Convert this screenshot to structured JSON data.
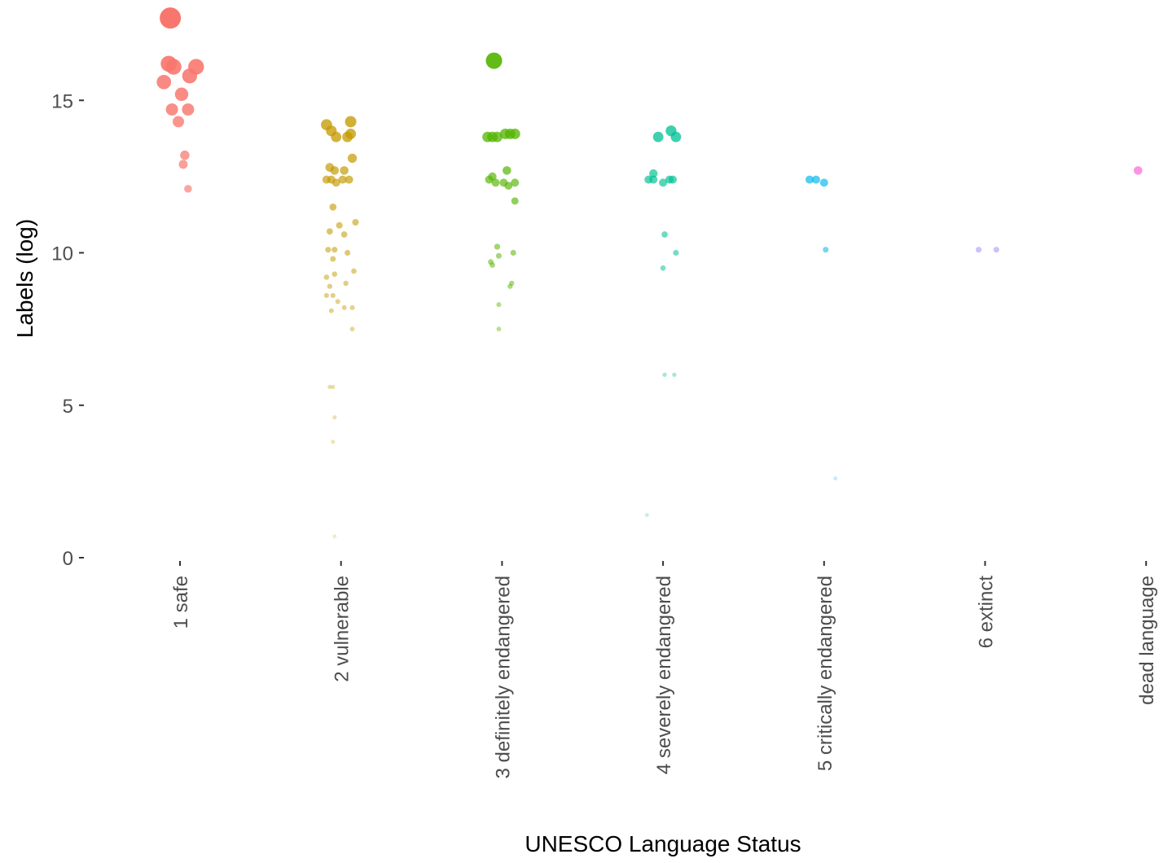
{
  "chart_data": {
    "type": "scatter",
    "title": "",
    "xlabel": "UNESCO Language Status",
    "ylabel": "Labels (log)",
    "ylim": [
      0,
      17.7
    ],
    "yticks": [
      "0",
      "5",
      "10",
      "15"
    ],
    "grid": false,
    "legend": "none",
    "categories": [
      "1 safe",
      "2 vulnerable",
      "3 definitely endangered",
      "4 severely endangered",
      "5 critically endangered",
      "6 extinct",
      "dead language"
    ],
    "colors": [
      "#F8766D",
      "#C49A00",
      "#53B400",
      "#00C094",
      "#00B6EB",
      "#A58AFF",
      "#FB61D7"
    ],
    "note_size_encodes": "y",
    "series": [
      {
        "category": "1 safe",
        "points": [
          {
            "dx": -0.06,
            "y": 17.7
          },
          {
            "dx": -0.07,
            "y": 16.2
          },
          {
            "dx": -0.04,
            "y": 16.1
          },
          {
            "dx": 0.1,
            "y": 16.1
          },
          {
            "dx": 0.06,
            "y": 15.8
          },
          {
            "dx": -0.1,
            "y": 15.6
          },
          {
            "dx": 0.01,
            "y": 15.2
          },
          {
            "dx": -0.05,
            "y": 14.7
          },
          {
            "dx": 0.05,
            "y": 14.7
          },
          {
            "dx": -0.01,
            "y": 14.3
          },
          {
            "dx": 0.03,
            "y": 13.2
          },
          {
            "dx": 0.02,
            "y": 12.9
          },
          {
            "dx": 0.05,
            "y": 12.1
          }
        ]
      },
      {
        "category": "2 vulnerable",
        "points": [
          {
            "dx": -0.09,
            "y": 14.2
          },
          {
            "dx": 0.06,
            "y": 14.3
          },
          {
            "dx": -0.06,
            "y": 14.0
          },
          {
            "dx": -0.03,
            "y": 13.8
          },
          {
            "dx": 0.04,
            "y": 13.8
          },
          {
            "dx": 0.06,
            "y": 13.9
          },
          {
            "dx": 0.07,
            "y": 13.1
          },
          {
            "dx": -0.07,
            "y": 12.8
          },
          {
            "dx": -0.04,
            "y": 12.7
          },
          {
            "dx": 0.02,
            "y": 12.7
          },
          {
            "dx": -0.09,
            "y": 12.4
          },
          {
            "dx": -0.06,
            "y": 12.4
          },
          {
            "dx": -0.03,
            "y": 12.3
          },
          {
            "dx": 0.01,
            "y": 12.4
          },
          {
            "dx": 0.05,
            "y": 12.4
          },
          {
            "dx": -0.05,
            "y": 11.5
          },
          {
            "dx": 0.09,
            "y": 11.0
          },
          {
            "dx": -0.01,
            "y": 10.9
          },
          {
            "dx": -0.07,
            "y": 10.7
          },
          {
            "dx": 0.02,
            "y": 10.6
          },
          {
            "dx": -0.08,
            "y": 10.1
          },
          {
            "dx": -0.04,
            "y": 10.1
          },
          {
            "dx": 0.04,
            "y": 10.0
          },
          {
            "dx": -0.05,
            "y": 9.8
          },
          {
            "dx": 0.08,
            "y": 9.4
          },
          {
            "dx": -0.09,
            "y": 9.2
          },
          {
            "dx": -0.04,
            "y": 9.3
          },
          {
            "dx": -0.07,
            "y": 8.9
          },
          {
            "dx": 0.03,
            "y": 9.0
          },
          {
            "dx": -0.09,
            "y": 8.6
          },
          {
            "dx": -0.05,
            "y": 8.6
          },
          {
            "dx": -0.02,
            "y": 8.4
          },
          {
            "dx": 0.07,
            "y": 8.2
          },
          {
            "dx": 0.02,
            "y": 8.2
          },
          {
            "dx": -0.06,
            "y": 8.1
          },
          {
            "dx": 0.07,
            "y": 7.5
          },
          {
            "dx": -0.07,
            "y": 5.6
          },
          {
            "dx": -0.05,
            "y": 5.6
          },
          {
            "dx": -0.04,
            "y": 4.6
          },
          {
            "dx": -0.05,
            "y": 3.8
          },
          {
            "dx": -0.04,
            "y": 0.7
          }
        ]
      },
      {
        "category": "3 definitely endangered",
        "points": [
          {
            "dx": -0.05,
            "y": 16.3
          },
          {
            "dx": -0.09,
            "y": 13.8
          },
          {
            "dx": -0.06,
            "y": 13.8
          },
          {
            "dx": -0.03,
            "y": 13.8
          },
          {
            "dx": 0.02,
            "y": 13.9
          },
          {
            "dx": 0.05,
            "y": 13.9
          },
          {
            "dx": 0.08,
            "y": 13.9
          },
          {
            "dx": 0.03,
            "y": 12.7
          },
          {
            "dx": -0.06,
            "y": 12.5
          },
          {
            "dx": -0.08,
            "y": 12.4
          },
          {
            "dx": -0.04,
            "y": 12.3
          },
          {
            "dx": 0.01,
            "y": 12.3
          },
          {
            "dx": 0.04,
            "y": 12.2
          },
          {
            "dx": 0.08,
            "y": 12.3
          },
          {
            "dx": 0.08,
            "y": 11.7
          },
          {
            "dx": -0.03,
            "y": 10.2
          },
          {
            "dx": 0.07,
            "y": 10.0
          },
          {
            "dx": -0.02,
            "y": 9.9
          },
          {
            "dx": -0.07,
            "y": 9.7
          },
          {
            "dx": -0.06,
            "y": 9.6
          },
          {
            "dx": 0.06,
            "y": 9.0
          },
          {
            "dx": 0.05,
            "y": 8.9
          },
          {
            "dx": -0.02,
            "y": 8.3
          },
          {
            "dx": -0.02,
            "y": 7.5
          }
        ]
      },
      {
        "category": "4 severely endangered",
        "points": [
          {
            "dx": -0.03,
            "y": 13.8
          },
          {
            "dx": 0.05,
            "y": 14.0
          },
          {
            "dx": 0.08,
            "y": 13.8
          },
          {
            "dx": -0.06,
            "y": 12.6
          },
          {
            "dx": -0.09,
            "y": 12.4
          },
          {
            "dx": -0.06,
            "y": 12.4
          },
          {
            "dx": 0.0,
            "y": 12.3
          },
          {
            "dx": 0.04,
            "y": 12.4
          },
          {
            "dx": 0.06,
            "y": 12.4
          },
          {
            "dx": 0.01,
            "y": 10.6
          },
          {
            "dx": 0.08,
            "y": 10.0
          },
          {
            "dx": 0.0,
            "y": 9.5
          },
          {
            "dx": 0.01,
            "y": 6.0
          },
          {
            "dx": 0.07,
            "y": 6.0
          },
          {
            "dx": -0.1,
            "y": 1.4
          }
        ]
      },
      {
        "category": "5 critically endangered",
        "points": [
          {
            "dx": -0.09,
            "y": 12.4
          },
          {
            "dx": -0.05,
            "y": 12.4
          },
          {
            "dx": 0.0,
            "y": 12.3
          },
          {
            "dx": 0.01,
            "y": 10.1
          },
          {
            "dx": 0.07,
            "y": 2.6
          }
        ]
      },
      {
        "category": "6 extinct",
        "points": [
          {
            "dx": -0.04,
            "y": 10.1
          },
          {
            "dx": 0.07,
            "y": 10.1
          }
        ]
      },
      {
        "category": "dead language",
        "points": [
          {
            "dx": -0.05,
            "y": 12.7
          }
        ]
      }
    ]
  }
}
